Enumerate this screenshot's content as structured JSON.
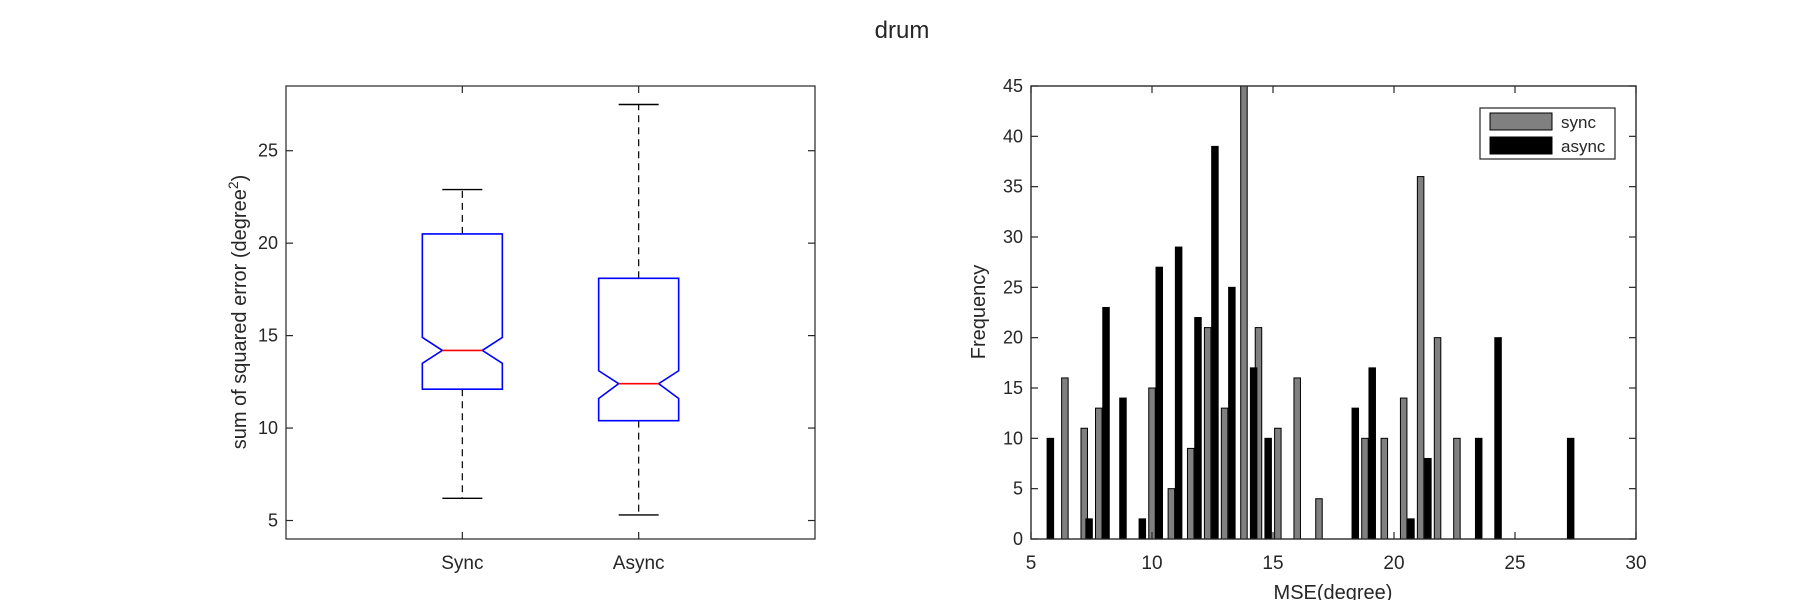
{
  "figure_title": "drum",
  "chart_data": [
    {
      "type": "box",
      "title": "",
      "xlabel": "",
      "ylabel": "sum of squared error (degree",
      "ylabel_superscript": "2",
      "ylabel_close": ")",
      "categories": [
        "Sync",
        "Async"
      ],
      "ylim": [
        4,
        28.5
      ],
      "yticks": [
        5,
        10,
        15,
        20,
        25
      ],
      "notched": true,
      "box_color": "#0000ff",
      "median_color": "#ff0000",
      "boxes": [
        {
          "name": "Sync",
          "whisker_low": 6.2,
          "q1": 12.1,
          "notch_low": 13.5,
          "median": 14.2,
          "notch_high": 14.9,
          "q3": 20.5,
          "whisker_high": 22.9
        },
        {
          "name": "Async",
          "whisker_low": 5.3,
          "q1": 10.4,
          "notch_low": 11.6,
          "median": 12.4,
          "notch_high": 13.1,
          "q3": 18.1,
          "whisker_high": 27.5
        }
      ]
    },
    {
      "type": "bar",
      "title": "",
      "xlabel": "MSE(degree)",
      "ylabel": "Frequency",
      "xlim": [
        5,
        30
      ],
      "ylim": [
        0,
        45
      ],
      "xticks": [
        5,
        10,
        15,
        20,
        25,
        30
      ],
      "yticks": [
        0,
        5,
        10,
        15,
        20,
        25,
        30,
        35,
        40,
        45
      ],
      "legend_position": "top-right",
      "series": [
        {
          "name": "sync",
          "color": "#808080",
          "points": [
            {
              "x": 6.4,
              "y": 16
            },
            {
              "x": 7.2,
              "y": 11
            },
            {
              "x": 7.8,
              "y": 13
            },
            {
              "x": 10.0,
              "y": 15
            },
            {
              "x": 10.8,
              "y": 5
            },
            {
              "x": 11.6,
              "y": 9
            },
            {
              "x": 12.3,
              "y": 21
            },
            {
              "x": 13.0,
              "y": 13
            },
            {
              "x": 13.8,
              "y": 45
            },
            {
              "x": 14.4,
              "y": 21
            },
            {
              "x": 15.2,
              "y": 11
            },
            {
              "x": 16.0,
              "y": 16
            },
            {
              "x": 16.9,
              "y": 4
            },
            {
              "x": 18.8,
              "y": 10
            },
            {
              "x": 19.6,
              "y": 10
            },
            {
              "x": 20.4,
              "y": 14
            },
            {
              "x": 21.1,
              "y": 36
            },
            {
              "x": 21.8,
              "y": 20
            },
            {
              "x": 22.6,
              "y": 10
            }
          ]
        },
        {
          "name": "async",
          "color": "#000000",
          "points": [
            {
              "x": 5.8,
              "y": 10
            },
            {
              "x": 7.4,
              "y": 2
            },
            {
              "x": 8.1,
              "y": 23
            },
            {
              "x": 8.8,
              "y": 14
            },
            {
              "x": 9.6,
              "y": 2
            },
            {
              "x": 10.3,
              "y": 27
            },
            {
              "x": 11.1,
              "y": 29
            },
            {
              "x": 11.9,
              "y": 22
            },
            {
              "x": 12.6,
              "y": 39
            },
            {
              "x": 13.3,
              "y": 25
            },
            {
              "x": 14.2,
              "y": 17
            },
            {
              "x": 14.8,
              "y": 10
            },
            {
              "x": 18.4,
              "y": 13
            },
            {
              "x": 19.1,
              "y": 17
            },
            {
              "x": 20.7,
              "y": 2
            },
            {
              "x": 21.4,
              "y": 8
            },
            {
              "x": 23.5,
              "y": 10
            },
            {
              "x": 24.3,
              "y": 20
            },
            {
              "x": 27.3,
              "y": 10
            }
          ]
        }
      ]
    }
  ]
}
